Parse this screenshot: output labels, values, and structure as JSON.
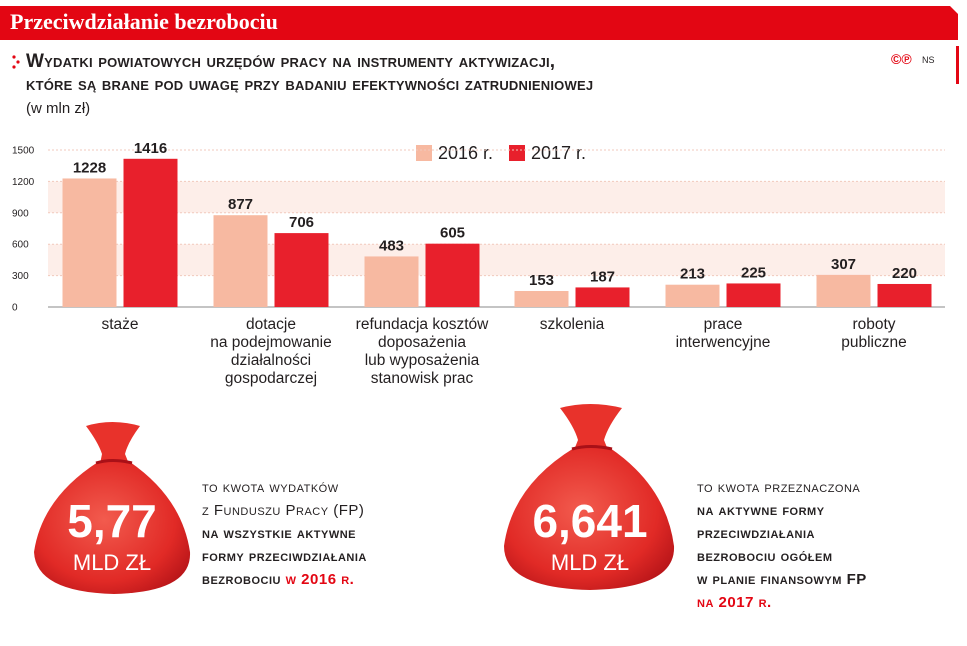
{
  "header": {
    "title": "Przeciwdziałanie bezrobociu"
  },
  "subtitle": {
    "line1": "Wydatki powiatowych urzędów pracy na instrumenty aktywizacji,",
    "line2": "które są brane pod uwagę przy badaniu efektywności zatrudnieniowej",
    "unit_note": "(w mln zł)"
  },
  "credits": {
    "copyright": "©℗",
    "author": "NS"
  },
  "colors": {
    "accent": "#e30613",
    "series_2016": "#f7b9a1",
    "series_2017": "#e8202c",
    "band": "#fdeee9"
  },
  "chart_data": {
    "type": "bar",
    "categories": [
      "staże",
      "dotacje\nna podejmowanie\ndziałalności\ngospodarczej",
      "refundacja kosztów\ndoposażenia\nlub wyposażenia\nstanowisk prac",
      "szkolenia",
      "prace\ninterwencyjne",
      "roboty\npubliczne"
    ],
    "series": [
      {
        "name": "2016 r.",
        "values": [
          1228,
          877,
          483,
          153,
          213,
          307
        ]
      },
      {
        "name": "2017 r.",
        "values": [
          1416,
          706,
          605,
          187,
          225,
          220
        ]
      }
    ],
    "yticks": [
      "0",
      "300",
      "600",
      "900",
      "1200",
      "1500"
    ],
    "ylim": [
      0,
      1500
    ],
    "legend_position": "top-center",
    "grid": true
  },
  "bags": [
    {
      "value": "5,77",
      "unit": "MLD ZŁ"
    },
    {
      "value": "6,641",
      "unit": "MLD ZŁ"
    }
  ],
  "desc1": {
    "l1": "to kwota wydatków",
    "l2": "z Funduszu Pracy (FP)",
    "l3": "na wszystkie aktywne",
    "l4": "formy przeciwdziałania",
    "l5a": "bezrobociu",
    "l5b": "w 2016 r."
  },
  "desc2": {
    "l1": "to kwota przeznaczona",
    "l2": "na aktywne formy",
    "l3": "przeciwdziałania",
    "l4": "bezrobociu ogółem",
    "l5": "w planie finansowym FP",
    "l6": "na 2017 r."
  }
}
